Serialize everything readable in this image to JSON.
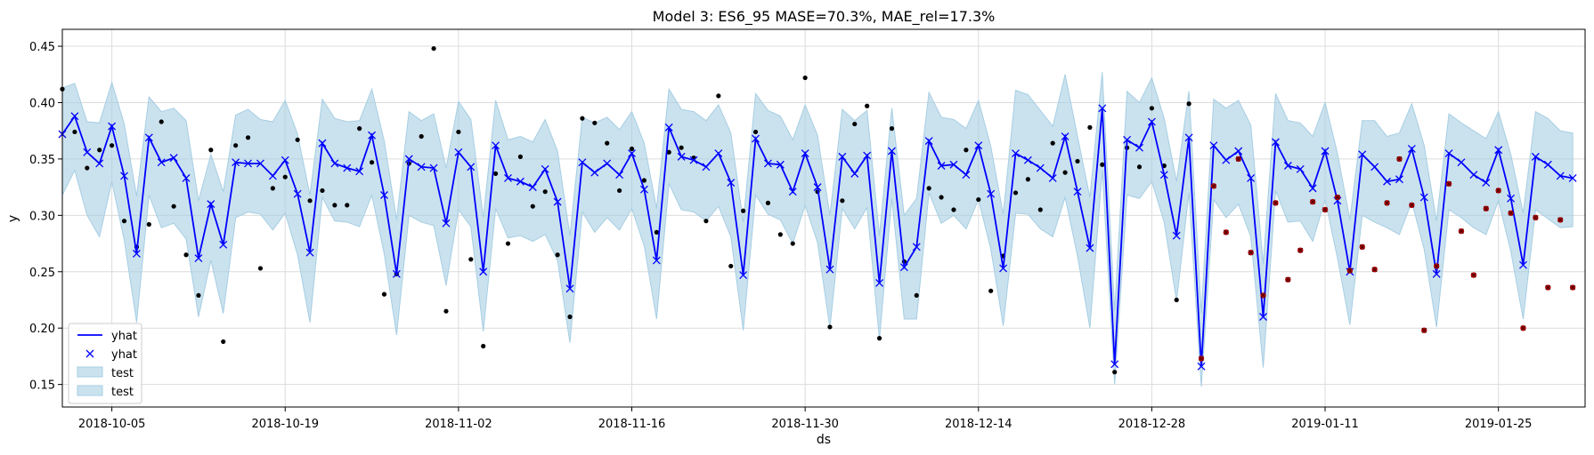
{
  "chart_data": {
    "type": "line",
    "title": "Model 3: ES6_95 MASE=70.3%, MAE_rel=17.3%",
    "xlabel": "ds",
    "ylabel": "y",
    "x_start": "2018-10-01",
    "x_end": "2019-02-01",
    "x_ticks": [
      "2018-10-05",
      "2018-10-19",
      "2018-11-02",
      "2018-11-16",
      "2018-11-30",
      "2018-12-14",
      "2018-12-28",
      "2019-01-11",
      "2019-01-25"
    ],
    "ylim": [
      0.13,
      0.465
    ],
    "y_ticks": [
      "0.15",
      "0.20",
      "0.25",
      "0.30",
      "0.35",
      "0.40",
      "0.45"
    ],
    "grid": true,
    "legend_position": "bottom-left",
    "legend": [
      {
        "label": "yhat",
        "kind": "line"
      },
      {
        "label": "yhat",
        "kind": "marker"
      },
      {
        "label": "test",
        "kind": "band"
      },
      {
        "label": "test",
        "kind": "band"
      }
    ],
    "colors": {
      "yhat": "#0000ff",
      "band": "#a6cee3",
      "actual": "#000000",
      "test_actual": "#b30000",
      "grid": "#dcdcdc"
    },
    "yhat": [
      0.372,
      0.388,
      0.356,
      0.346,
      0.379,
      0.335,
      0.266,
      0.369,
      0.347,
      0.351,
      0.333,
      0.262,
      0.31,
      0.274,
      0.347,
      0.346,
      0.346,
      0.335,
      0.349,
      0.319,
      0.267,
      0.364,
      0.346,
      0.342,
      0.339,
      0.371,
      0.318,
      0.248,
      0.35,
      0.343,
      0.342,
      0.293,
      0.356,
      0.343,
      0.25,
      0.362,
      0.333,
      0.33,
      0.325,
      0.341,
      0.312,
      0.235,
      0.347,
      0.338,
      0.346,
      0.336,
      0.355,
      0.323,
      0.26,
      0.378,
      0.352,
      0.349,
      0.343,
      0.355,
      0.329,
      0.247,
      0.368,
      0.346,
      0.345,
      0.321,
      0.355,
      0.325,
      0.252,
      0.352,
      0.337,
      0.353,
      0.24,
      0.357,
      0.254,
      0.272,
      0.366,
      0.344,
      0.345,
      0.336,
      0.362,
      0.319,
      0.253,
      0.355,
      0.349,
      0.342,
      0.333,
      0.37,
      0.321,
      0.271,
      0.395,
      0.168,
      0.367,
      0.36,
      0.383,
      0.336,
      0.282,
      0.369,
      0.166,
      0.362,
      0.349,
      0.357,
      0.333,
      0.21,
      0.365,
      0.344,
      0.341,
      0.324,
      0.357,
      0.313,
      0.25,
      0.354,
      0.343,
      0.33,
      0.332,
      0.359,
      0.316,
      0.248,
      0.355,
      0.347,
      0.336,
      0.329,
      0.358,
      0.315,
      0.256,
      0.352,
      0.345,
      0.335,
      0.333
    ],
    "band_upper": [
      0.413,
      0.417,
      0.383,
      0.382,
      0.418,
      0.381,
      0.317,
      0.405,
      0.392,
      0.395,
      0.384,
      0.313,
      0.354,
      0.321,
      0.389,
      0.394,
      0.385,
      0.383,
      0.402,
      0.372,
      0.318,
      0.403,
      0.386,
      0.383,
      0.384,
      0.412,
      0.366,
      0.296,
      0.392,
      0.384,
      0.39,
      0.342,
      0.401,
      0.385,
      0.298,
      0.402,
      0.367,
      0.37,
      0.365,
      0.385,
      0.357,
      0.282,
      0.387,
      0.382,
      0.387,
      0.376,
      0.392,
      0.364,
      0.306,
      0.412,
      0.394,
      0.392,
      0.384,
      0.398,
      0.373,
      0.294,
      0.408,
      0.393,
      0.388,
      0.367,
      0.398,
      0.371,
      0.3,
      0.394,
      0.384,
      0.393,
      0.282,
      0.395,
      0.3,
      0.315,
      0.409,
      0.387,
      0.385,
      0.377,
      0.402,
      0.361,
      0.301,
      0.411,
      0.407,
      0.393,
      0.379,
      0.425,
      0.37,
      0.316,
      0.427,
      0.215,
      0.41,
      0.4,
      0.422,
      0.386,
      0.33,
      0.41,
      0.213,
      0.403,
      0.395,
      0.402,
      0.38,
      0.257,
      0.408,
      0.384,
      0.382,
      0.37,
      0.4,
      0.355,
      0.296,
      0.384,
      0.384,
      0.37,
      0.373,
      0.399,
      0.362,
      0.295,
      0.39,
      0.382,
      0.375,
      0.368,
      0.392,
      0.354,
      0.302,
      0.392,
      0.386,
      0.375,
      0.373
    ],
    "band_lower": [
      0.318,
      0.34,
      0.3,
      0.281,
      0.33,
      0.278,
      0.205,
      0.318,
      0.289,
      0.293,
      0.279,
      0.21,
      0.26,
      0.213,
      0.298,
      0.303,
      0.301,
      0.287,
      0.302,
      0.265,
      0.205,
      0.316,
      0.295,
      0.294,
      0.29,
      0.318,
      0.266,
      0.194,
      0.3,
      0.294,
      0.291,
      0.238,
      0.305,
      0.29,
      0.197,
      0.306,
      0.28,
      0.282,
      0.277,
      0.283,
      0.26,
      0.187,
      0.303,
      0.285,
      0.298,
      0.287,
      0.306,
      0.273,
      0.208,
      0.328,
      0.305,
      0.303,
      0.295,
      0.308,
      0.281,
      0.198,
      0.318,
      0.301,
      0.296,
      0.275,
      0.309,
      0.276,
      0.2,
      0.306,
      0.288,
      0.307,
      0.19,
      0.315,
      0.208,
      0.208,
      0.32,
      0.293,
      0.3,
      0.288,
      0.314,
      0.27,
      0.202,
      0.302,
      0.301,
      0.288,
      0.281,
      0.316,
      0.264,
      0.2,
      0.34,
      0.15,
      0.318,
      0.315,
      0.33,
      0.294,
      0.224,
      0.32,
      0.148,
      0.314,
      0.298,
      0.31,
      0.281,
      0.165,
      0.322,
      0.294,
      0.295,
      0.277,
      0.314,
      0.262,
      0.203,
      0.3,
      0.294,
      0.289,
      0.283,
      0.312,
      0.27,
      0.201,
      0.305,
      0.298,
      0.289,
      0.283,
      0.313,
      0.268,
      0.208,
      0.305,
      0.297,
      0.289,
      0.29
    ],
    "actual": [
      {
        "x": 0.0,
        "y": 0.412
      },
      {
        "x": 1.0,
        "y": 0.374
      },
      {
        "x": 2.0,
        "y": 0.342
      },
      {
        "x": 3.0,
        "y": 0.358
      },
      {
        "x": 4.0,
        "y": 0.362
      },
      {
        "x": 5.0,
        "y": 0.295
      },
      {
        "x": 6.0,
        "y": 0.272
      },
      {
        "x": 7.0,
        "y": 0.292
      },
      {
        "x": 8.0,
        "y": 0.383
      },
      {
        "x": 9.0,
        "y": 0.308
      },
      {
        "x": 10.0,
        "y": 0.265
      },
      {
        "x": 11.0,
        "y": 0.229
      },
      {
        "x": 12.0,
        "y": 0.358
      },
      {
        "x": 13.0,
        "y": 0.188
      },
      {
        "x": 14.0,
        "y": 0.362
      },
      {
        "x": 15.0,
        "y": 0.369
      },
      {
        "x": 16.0,
        "y": 0.253
      },
      {
        "x": 17.0,
        "y": 0.324
      },
      {
        "x": 18.0,
        "y": 0.334
      },
      {
        "x": 19.0,
        "y": 0.367
      },
      {
        "x": 20.0,
        "y": 0.313
      },
      {
        "x": 21.0,
        "y": 0.322
      },
      {
        "x": 22.0,
        "y": 0.309
      },
      {
        "x": 23.0,
        "y": 0.309
      },
      {
        "x": 24.0,
        "y": 0.377
      },
      {
        "x": 25.0,
        "y": 0.347
      },
      {
        "x": 26.0,
        "y": 0.23
      },
      {
        "x": 27.0,
        "y": 0.248
      },
      {
        "x": 28.0,
        "y": 0.346
      },
      {
        "x": 29.0,
        "y": 0.37
      },
      {
        "x": 30.0,
        "y": 0.448
      },
      {
        "x": 31.0,
        "y": 0.215
      },
      {
        "x": 32.0,
        "y": 0.374
      },
      {
        "x": 33.0,
        "y": 0.261
      },
      {
        "x": 34.0,
        "y": 0.184
      },
      {
        "x": 35.0,
        "y": 0.337
      },
      {
        "x": 36.0,
        "y": 0.275
      },
      {
        "x": 37.0,
        "y": 0.352
      },
      {
        "x": 38.0,
        "y": 0.308
      },
      {
        "x": 39.0,
        "y": 0.321
      },
      {
        "x": 40.0,
        "y": 0.265
      },
      {
        "x": 41.0,
        "y": 0.21
      },
      {
        "x": 42.0,
        "y": 0.386
      },
      {
        "x": 43.0,
        "y": 0.382
      },
      {
        "x": 44.0,
        "y": 0.364
      },
      {
        "x": 45.0,
        "y": 0.322
      },
      {
        "x": 46.0,
        "y": 0.359
      },
      {
        "x": 47.0,
        "y": 0.331
      },
      {
        "x": 48.0,
        "y": 0.285
      },
      {
        "x": 49.0,
        "y": 0.356
      },
      {
        "x": 50.0,
        "y": 0.36
      },
      {
        "x": 51.0,
        "y": 0.351
      },
      {
        "x": 52.0,
        "y": 0.295
      },
      {
        "x": 53.0,
        "y": 0.406
      },
      {
        "x": 54.0,
        "y": 0.255
      },
      {
        "x": 55.0,
        "y": 0.304
      },
      {
        "x": 56.0,
        "y": 0.374
      },
      {
        "x": 57.0,
        "y": 0.311
      },
      {
        "x": 58.0,
        "y": 0.283
      },
      {
        "x": 59.0,
        "y": 0.275
      },
      {
        "x": 60.0,
        "y": 0.422
      },
      {
        "x": 61.0,
        "y": 0.321
      },
      {
        "x": 62.0,
        "y": 0.201
      },
      {
        "x": 63.0,
        "y": 0.313
      },
      {
        "x": 64.0,
        "y": 0.381
      },
      {
        "x": 65.0,
        "y": 0.397
      },
      {
        "x": 66.0,
        "y": 0.191
      },
      {
        "x": 67.0,
        "y": 0.377
      },
      {
        "x": 68.0,
        "y": 0.259
      },
      {
        "x": 69.0,
        "y": 0.229
      },
      {
        "x": 70.0,
        "y": 0.324
      },
      {
        "x": 71.0,
        "y": 0.316
      },
      {
        "x": 72.0,
        "y": 0.305
      },
      {
        "x": 73.0,
        "y": 0.358
      },
      {
        "x": 74.0,
        "y": 0.314
      },
      {
        "x": 75.0,
        "y": 0.233
      },
      {
        "x": 76.0,
        "y": 0.264
      },
      {
        "x": 77.0,
        "y": 0.32
      },
      {
        "x": 78.0,
        "y": 0.332
      },
      {
        "x": 79.0,
        "y": 0.305
      },
      {
        "x": 80.0,
        "y": 0.364
      },
      {
        "x": 81.0,
        "y": 0.338
      },
      {
        "x": 82.0,
        "y": 0.348
      },
      {
        "x": 83.0,
        "y": 0.378
      },
      {
        "x": 84.0,
        "y": 0.345
      },
      {
        "x": 85.0,
        "y": 0.161
      },
      {
        "x": 86.0,
        "y": 0.36
      },
      {
        "x": 87.0,
        "y": 0.343
      },
      {
        "x": 88.0,
        "y": 0.395
      },
      {
        "x": 89.0,
        "y": 0.344
      },
      {
        "x": 90.0,
        "y": 0.225
      },
      {
        "x": 91.0,
        "y": 0.399
      }
    ],
    "test_actual": [
      {
        "x": 92.0,
        "y": 0.173
      },
      {
        "x": 93.0,
        "y": 0.326
      },
      {
        "x": 94.0,
        "y": 0.285
      },
      {
        "x": 95.0,
        "y": 0.35
      },
      {
        "x": 96.0,
        "y": 0.267
      },
      {
        "x": 97.0,
        "y": 0.229
      },
      {
        "x": 98.0,
        "y": 0.311
      },
      {
        "x": 99.0,
        "y": 0.243
      },
      {
        "x": 100.0,
        "y": 0.269
      },
      {
        "x": 101.0,
        "y": 0.312
      },
      {
        "x": 102.0,
        "y": 0.305
      },
      {
        "x": 103.0,
        "y": 0.316
      },
      {
        "x": 104.0,
        "y": 0.251
      },
      {
        "x": 105.0,
        "y": 0.272
      },
      {
        "x": 106.0,
        "y": 0.252
      },
      {
        "x": 107.0,
        "y": 0.311
      },
      {
        "x": 108.0,
        "y": 0.35
      },
      {
        "x": 109.0,
        "y": 0.309
      },
      {
        "x": 110.0,
        "y": 0.198
      },
      {
        "x": 111.0,
        "y": 0.255
      },
      {
        "x": 112.0,
        "y": 0.328
      },
      {
        "x": 113.0,
        "y": 0.286
      },
      {
        "x": 114.0,
        "y": 0.247
      },
      {
        "x": 115.0,
        "y": 0.306
      },
      {
        "x": 116.0,
        "y": 0.322
      },
      {
        "x": 117.0,
        "y": 0.302
      },
      {
        "x": 118.0,
        "y": 0.2
      },
      {
        "x": 119.0,
        "y": 0.298
      },
      {
        "x": 120.0,
        "y": 0.236
      },
      {
        "x": 121.0,
        "y": 0.296
      },
      {
        "x": 122.0,
        "y": 0.236
      }
    ]
  }
}
